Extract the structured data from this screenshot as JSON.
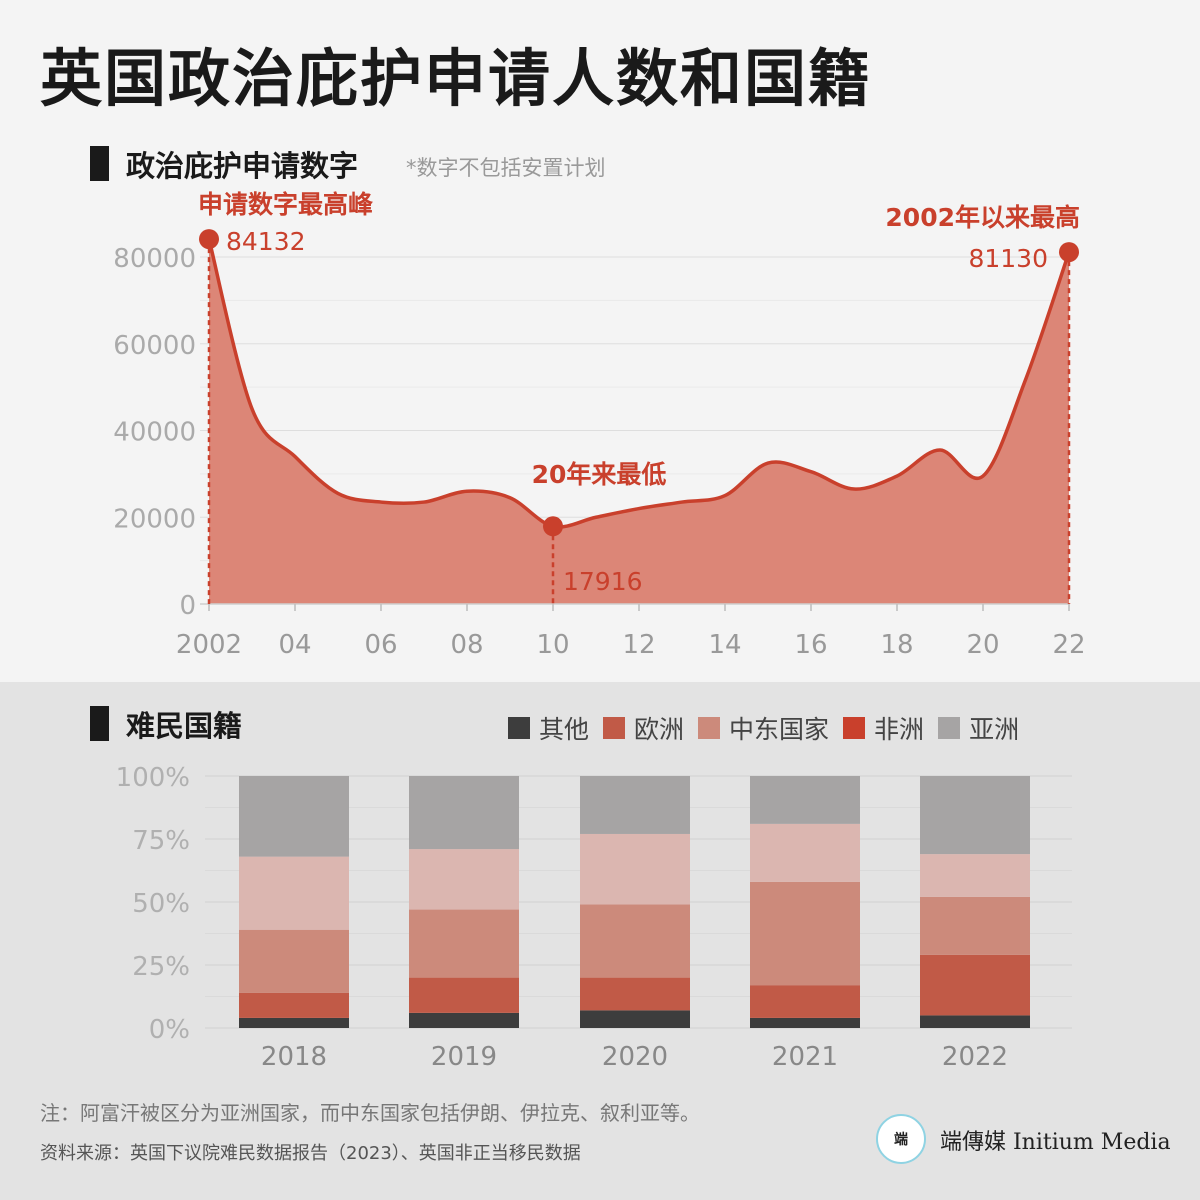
{
  "page": {
    "title": "英国政治庇护申请人数和国籍",
    "footnote": "注：阿富汗被区分为亚洲国家，而中东国家包括伊朗、伊拉克、叙利亚等。",
    "source": "资料来源：英国下议院难民数据报告（2023）、英国非正当移民数据",
    "logo_mark": "端",
    "logo_text": "端傳媒 Initium Media"
  },
  "colors": {
    "line": "#c9402c",
    "area": "#dc8677",
    "marker": "#c9402c",
    "annotation": "#c9402c",
    "axis_text": "#aaaaaa",
    "grid": "#dedede"
  },
  "chart_data": [
    {
      "type": "area",
      "title": "政治庇护申请数字",
      "subtitle": "*数字不包括安置计划",
      "x": [
        2002,
        2003,
        2004,
        2005,
        2006,
        2007,
        2008,
        2009,
        2010,
        2011,
        2012,
        2013,
        2014,
        2015,
        2016,
        2017,
        2018,
        2019,
        2020,
        2021,
        2022
      ],
      "xtick_values": [
        2002,
        2004,
        2006,
        2008,
        2010,
        2012,
        2014,
        2016,
        2018,
        2020,
        2022
      ],
      "xtick_labels": [
        "2002",
        "04",
        "06",
        "08",
        "10",
        "12",
        "14",
        "16",
        "18",
        "20",
        "22"
      ],
      "values": [
        84132,
        45000,
        34000,
        25500,
        23500,
        23500,
        26000,
        24500,
        17916,
        20000,
        22000,
        23500,
        25000,
        32500,
        30500,
        26500,
        29500,
        35500,
        29500,
        52000,
        81130
      ],
      "ylim": [
        0,
        80000
      ],
      "yticks": [
        0,
        20000,
        40000,
        60000,
        80000
      ],
      "yticks_labels": [
        "0",
        "20000",
        "40000",
        "60000",
        "80000"
      ],
      "grid": true,
      "annotations": [
        {
          "x": 2002,
          "y": 84132,
          "title": "申请数字最高峰",
          "value_label": "84132"
        },
        {
          "x": 2010,
          "y": 17916,
          "title": "20年来最低",
          "value_label": "17916"
        },
        {
          "x": 2022,
          "y": 81130,
          "title": "2002年以来最高",
          "value_label": "81130"
        }
      ]
    },
    {
      "type": "bar",
      "stacked": true,
      "title": "难民国籍",
      "categories": [
        "2018",
        "2019",
        "2020",
        "2021",
        "2022"
      ],
      "ylim": [
        0,
        100
      ],
      "yticks": [
        0,
        25,
        50,
        75,
        100
      ],
      "yticks_labels": [
        "0%",
        "25%",
        "50%",
        "75%",
        "100%"
      ],
      "legend_position": "top-right",
      "series": [
        {
          "name": "其他",
          "color": "#3d3d3d",
          "values": [
            4,
            6,
            7,
            4,
            5
          ]
        },
        {
          "name": "欧洲",
          "color": "#c15a47",
          "values": [
            10,
            14,
            13,
            13,
            24
          ]
        },
        {
          "name": "中东国家",
          "color": "#cc8a7b",
          "values": [
            25,
            27,
            29,
            41,
            23
          ]
        },
        {
          "name": "非洲",
          "color": "#dbb6b0",
          "values": [
            29,
            24,
            28,
            23,
            17
          ]
        },
        {
          "name": "亚洲",
          "color": "#a6a4a4",
          "values": [
            32,
            29,
            23,
            19,
            31
          ]
        }
      ],
      "legend_order": [
        0,
        1,
        2,
        3,
        4
      ],
      "legend_colors": [
        "#3d3d3d",
        "#c15a47",
        "#cc8a7b",
        "#c9402c",
        "#a6a4a4"
      ]
    }
  ]
}
